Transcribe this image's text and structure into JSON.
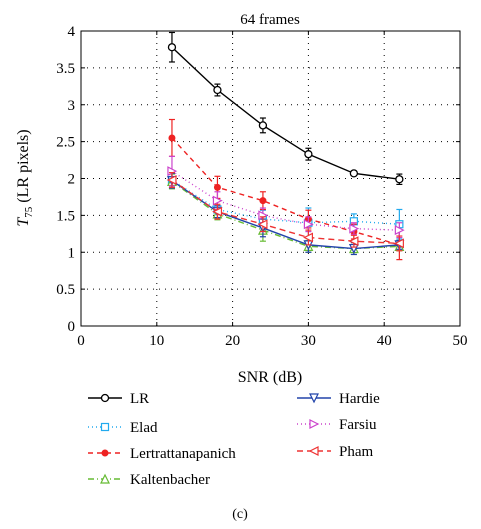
{
  "chart_data": {
    "type": "line",
    "title": "64 frames",
    "xlabel": "SNR (dB)",
    "ylabel_main": "T",
    "ylabel_sub": "75",
    "ylabel_rest": " (LR pixels)",
    "xlim": [
      0,
      50
    ],
    "ylim": [
      0,
      4
    ],
    "xticks": [
      0,
      10,
      20,
      30,
      40,
      50
    ],
    "yticks": [
      0,
      0.5,
      1,
      1.5,
      2,
      2.5,
      3,
      3.5,
      4
    ],
    "grid": "dotted",
    "legend_position": "below",
    "panel_label": "(c)",
    "series": [
      {
        "name": "LR",
        "color": "#000000",
        "dash": "",
        "marker": "circle",
        "x": [
          12,
          18,
          24,
          30,
          36,
          42
        ],
        "y": [
          3.78,
          3.2,
          2.72,
          2.33,
          2.07,
          1.99
        ],
        "err": [
          0.2,
          0.08,
          0.1,
          0.08,
          0.03,
          0.07
        ]
      },
      {
        "name": "Elad",
        "color": "#22aaee",
        "dash": "1 3",
        "marker": "square",
        "x": [
          12,
          18,
          24,
          30,
          36,
          42
        ],
        "y": [
          1.98,
          1.58,
          1.45,
          1.4,
          1.42,
          1.38
        ],
        "err": [
          0.1,
          0.12,
          0.12,
          0.2,
          0.1,
          0.2
        ]
      },
      {
        "name": "Lertrattanapanich",
        "color": "#ee2222",
        "dash": "5 4",
        "marker": "dot",
        "x": [
          12,
          18,
          24,
          30,
          36,
          42
        ],
        "y": [
          2.55,
          1.88,
          1.7,
          1.45,
          1.28,
          1.1
        ],
        "err": [
          0.25,
          0.15,
          0.12,
          0.12,
          0.1,
          0.2
        ]
      },
      {
        "name": "Kaltenbacher",
        "color": "#66bb33",
        "dash": "6 3 1 3",
        "marker": "triangle-up",
        "x": [
          12,
          18,
          24,
          30,
          36,
          42
        ],
        "y": [
          1.96,
          1.52,
          1.3,
          1.08,
          1.05,
          1.08
        ],
        "err": [
          0.1,
          0.08,
          0.15,
          0.08,
          0.08,
          0.06
        ]
      },
      {
        "name": "Hardie",
        "color": "#2244aa",
        "dash": "",
        "marker": "triangle-down",
        "x": [
          12,
          18,
          24,
          30,
          36,
          42
        ],
        "y": [
          1.97,
          1.55,
          1.33,
          1.1,
          1.05,
          1.1
        ],
        "err": [
          0.1,
          0.08,
          0.12,
          0.1,
          0.08,
          0.06
        ]
      },
      {
        "name": "Farsiu",
        "color": "#cc44cc",
        "dash": "1 3",
        "marker": "triangle-right",
        "x": [
          12,
          18,
          24,
          30,
          36,
          42
        ],
        "y": [
          2.1,
          1.7,
          1.5,
          1.38,
          1.32,
          1.3
        ],
        "err": [
          0.2,
          0.12,
          0.1,
          0.1,
          0.08,
          0.1
        ]
      },
      {
        "name": "Pham",
        "color": "#ee3333",
        "dash": "6 4",
        "marker": "triangle-left",
        "x": [
          12,
          18,
          24,
          30,
          36,
          42
        ],
        "y": [
          1.98,
          1.55,
          1.38,
          1.2,
          1.15,
          1.12
        ],
        "err": [
          0.1,
          0.1,
          0.1,
          0.1,
          0.08,
          0.1
        ]
      }
    ]
  }
}
